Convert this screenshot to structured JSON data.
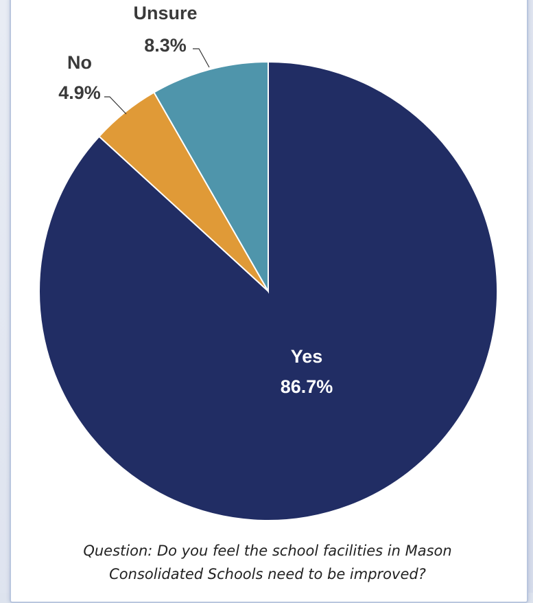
{
  "chart_data": {
    "type": "pie",
    "slices": [
      {
        "label": "Yes",
        "value": 86.7,
        "value_label": "86.7%",
        "color": "#212d64"
      },
      {
        "label": "No",
        "value": 4.9,
        "value_label": "4.9%",
        "color": "#e09a37"
      },
      {
        "label": "Unsure",
        "value": 8.3,
        "value_label": "8.3%",
        "color": "#4f95ab"
      }
    ],
    "start_angle_deg": 0,
    "direction": "clockwise",
    "order": [
      "Yes",
      "No",
      "Unsure"
    ]
  },
  "caption": {
    "line1": "Question: Do you feel the school facilities in Mason",
    "line2": "Consolidated Schools need to be improved?"
  }
}
